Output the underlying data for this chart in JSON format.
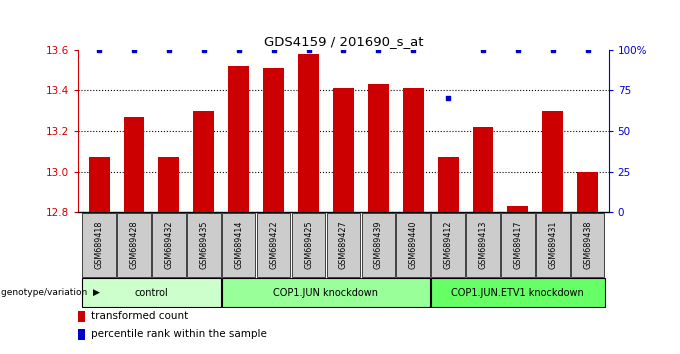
{
  "title": "GDS4159 / 201690_s_at",
  "samples": [
    "GSM689418",
    "GSM689428",
    "GSM689432",
    "GSM689435",
    "GSM689414",
    "GSM689422",
    "GSM689425",
    "GSM689427",
    "GSM689439",
    "GSM689440",
    "GSM689412",
    "GSM689413",
    "GSM689417",
    "GSM689431",
    "GSM689438"
  ],
  "values": [
    13.07,
    13.27,
    13.07,
    13.3,
    13.52,
    13.51,
    13.58,
    13.41,
    13.43,
    13.41,
    13.07,
    13.22,
    12.83,
    13.3,
    13.0
  ],
  "percentile_ranks": [
    100,
    100,
    100,
    100,
    100,
    100,
    100,
    100,
    100,
    100,
    70,
    100,
    100,
    100,
    100
  ],
  "bar_color": "#CC0000",
  "dot_color": "#0000CC",
  "ylim_left": [
    12.8,
    13.6
  ],
  "ylim_right": [
    0,
    100
  ],
  "yticks_left": [
    12.8,
    13.0,
    13.2,
    13.4,
    13.6
  ],
  "yticks_right": [
    0,
    25,
    50,
    75,
    100
  ],
  "groups": [
    {
      "label": "control",
      "start": 0,
      "end": 4,
      "color": "#ccffcc"
    },
    {
      "label": "COP1.JUN knockdown",
      "start": 4,
      "end": 10,
      "color": "#99ff99"
    },
    {
      "label": "COP1.JUN.ETV1 knockdown",
      "start": 10,
      "end": 15,
      "color": "#66ff66"
    }
  ],
  "legend_bar_label": "transformed count",
  "legend_dot_label": "percentile rank within the sample",
  "genotype_label": "genotype/variation",
  "bg_color": "#ffffff",
  "ax_color_left": "#CC0000",
  "ax_color_right": "#0000CC",
  "sample_box_color": "#cccccc",
  "group_colors": [
    "#ccffcc",
    "#99ff99",
    "#66ff66"
  ]
}
